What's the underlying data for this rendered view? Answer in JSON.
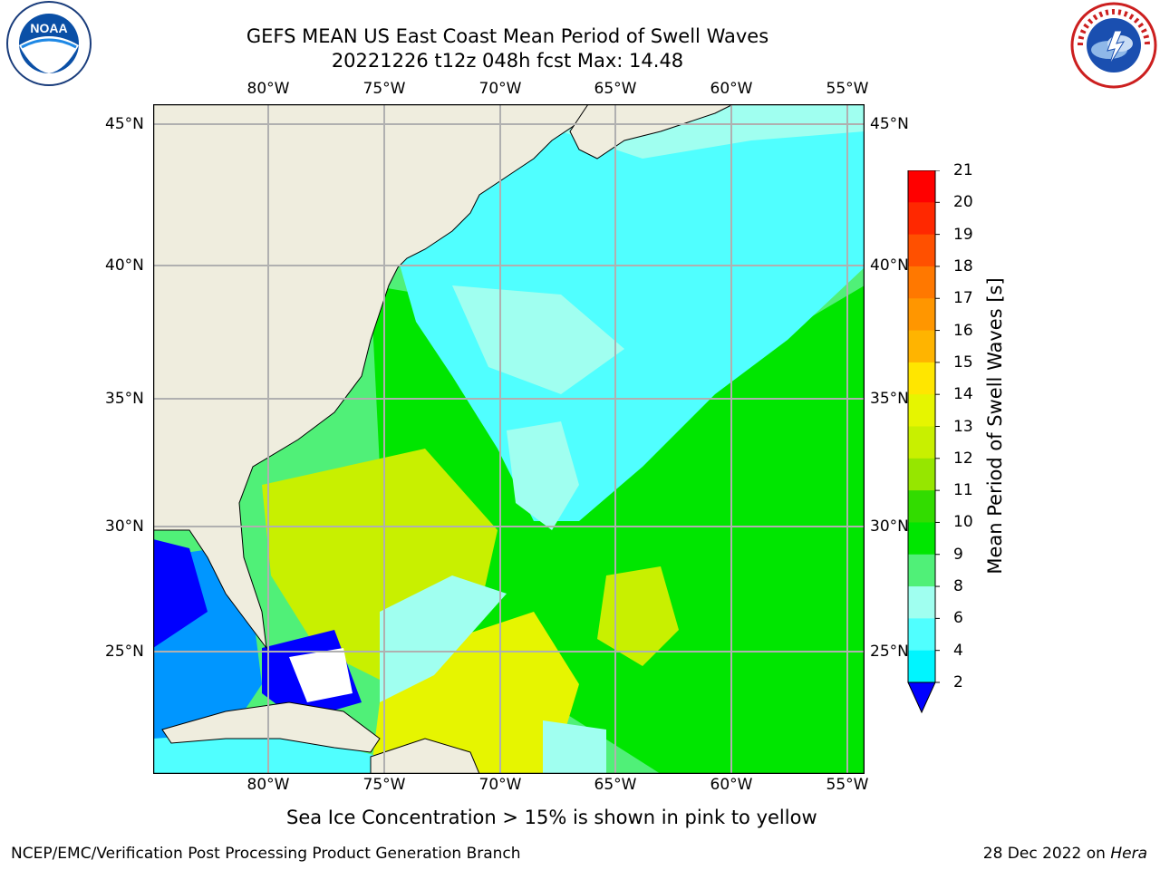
{
  "title": {
    "line1": "GEFS MEAN US East Coast Mean Period of Swell Waves",
    "line2": "20221226 t12z 048h fcst   Max: 14.48"
  },
  "logos": {
    "left": {
      "text": "NOAA",
      "ring_text": "NATIONAL OCEANIC AND ATMOSPHERIC ADMINISTRATION · U.S. DEPARTMENT OF COMMERCE"
    },
    "right": {
      "ring_text": "NATIONAL WEATHER SERVICE"
    }
  },
  "map": {
    "lon_labels": [
      "80°W",
      "75°W",
      "70°W",
      "65°W",
      "60°W",
      "55°W"
    ],
    "lat_labels": [
      "45°N",
      "40°N",
      "35°N",
      "30°N",
      "25°N"
    ],
    "colors": {
      "land": "#efedde",
      "grid": "#b0b0b0",
      "coast": "#000000"
    }
  },
  "colorbar": {
    "label": "Mean Period of Swell Waves [s]",
    "ticks": [
      "21",
      "20",
      "19",
      "18",
      "17",
      "16",
      "15",
      "14",
      "13",
      "12",
      "11",
      "10",
      "9",
      "8",
      "6",
      "4",
      "2"
    ],
    "colors": [
      "#ff0000",
      "#ff2800",
      "#ff5000",
      "#ff7800",
      "#ff9600",
      "#ffb400",
      "#ffe600",
      "#e6f500",
      "#c8f000",
      "#96e600",
      "#32dc00",
      "#00e600",
      "#50f078",
      "#a0fff0",
      "#50ffff",
      "#00f5ff",
      "#0096ff",
      "#0000ff"
    ]
  },
  "footer": {
    "note": "Sea Ice Concentration > 15% is shown in pink to yellow",
    "left": "NCEP/EMC/Verification Post Processing Product Generation Branch",
    "right_date": "28 Dec 2022 on",
    "right_host": "Hera"
  }
}
